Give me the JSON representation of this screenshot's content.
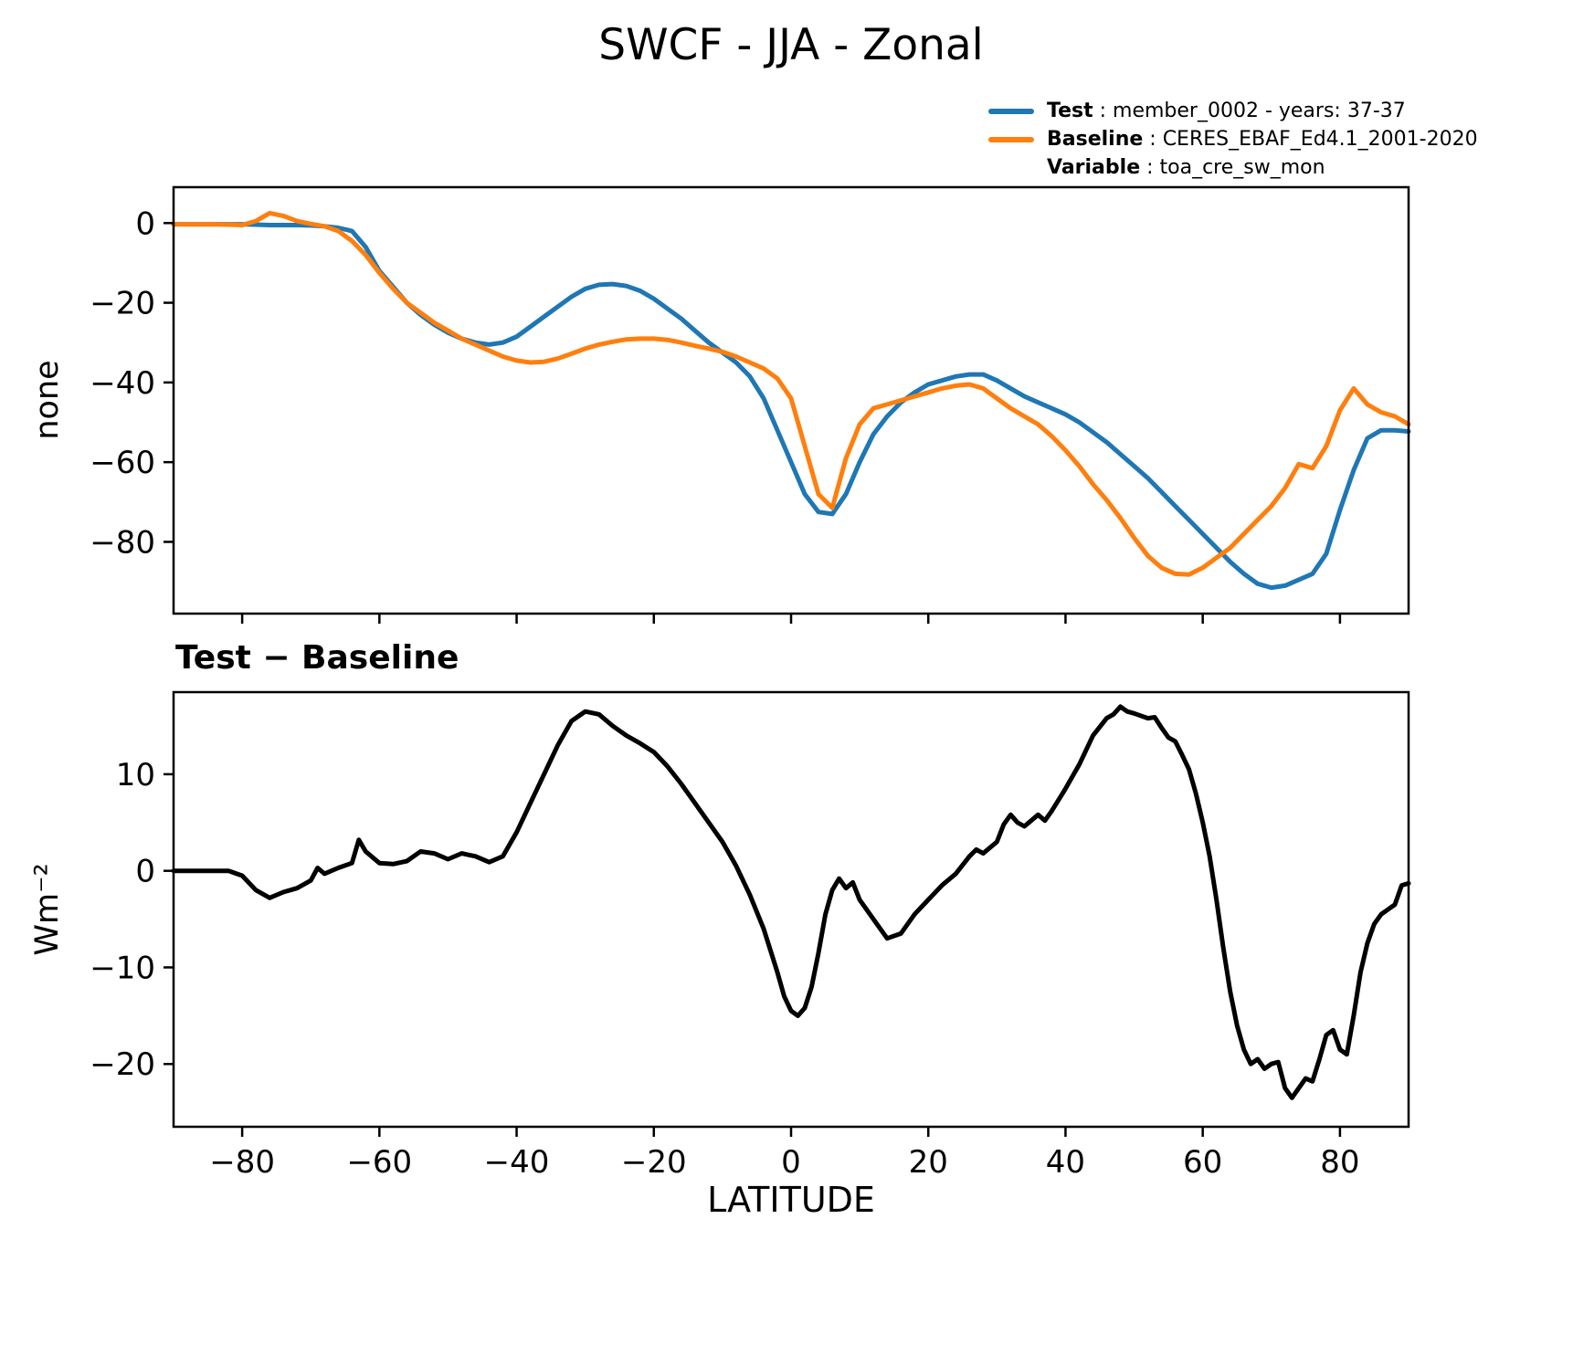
{
  "title": "SWCF - JJA - Zonal",
  "legend": {
    "entries": [
      {
        "swatch": "test",
        "key": "Test",
        "text": " : member_0002 - years: 37-37"
      },
      {
        "swatch": "baseline",
        "key": "Baseline",
        "text": " : CERES_EBAF_Ed4.1_2001-2020"
      },
      {
        "swatch": "none",
        "key": "Variable",
        "text": " : toa_cre_sw_mon"
      }
    ]
  },
  "chart_data": [
    {
      "type": "line",
      "title": "SWCF - JJA - Zonal",
      "xlabel": "",
      "ylabel": "none",
      "xlim": [
        -90,
        90
      ],
      "ylim": [
        -98,
        9
      ],
      "x_ticks": [
        -80,
        -60,
        -40,
        -20,
        0,
        20,
        40,
        60,
        80
      ],
      "y_ticks": [
        0,
        -20,
        -40,
        -60,
        -80
      ],
      "grid": false,
      "legend_position": "upper right outside",
      "series": [
        {
          "name": "Test : member_0002 - years: 37-37",
          "color": "#1f77b4",
          "x": [
            -90,
            -88,
            -86,
            -84,
            -82,
            -80,
            -78,
            -76,
            -74,
            -72,
            -70,
            -68,
            -66,
            -64,
            -62,
            -60,
            -58,
            -56,
            -54,
            -52,
            -50,
            -48,
            -46,
            -44,
            -42,
            -40,
            -38,
            -36,
            -34,
            -32,
            -30,
            -28,
            -26,
            -24,
            -22,
            -20,
            -18,
            -16,
            -14,
            -12,
            -10,
            -8,
            -6,
            -4,
            -2,
            0,
            2,
            4,
            6,
            8,
            10,
            12,
            14,
            16,
            18,
            20,
            22,
            24,
            26,
            28,
            30,
            32,
            34,
            36,
            38,
            40,
            42,
            44,
            46,
            48,
            50,
            52,
            54,
            56,
            58,
            60,
            62,
            64,
            66,
            68,
            70,
            72,
            74,
            76,
            78,
            80,
            82,
            84,
            86,
            88,
            90
          ],
          "y": [
            -0.3,
            -0.3,
            -0.3,
            -0.3,
            -0.3,
            -0.3,
            -0.4,
            -0.5,
            -0.5,
            -0.5,
            -0.6,
            -0.8,
            -1.2,
            -2,
            -6,
            -12,
            -16,
            -20,
            -23,
            -25.5,
            -27.5,
            -29,
            -30,
            -30.5,
            -30,
            -28.5,
            -26,
            -23.5,
            -21,
            -18.5,
            -16.5,
            -15.5,
            -15.3,
            -15.8,
            -17,
            -19,
            -21.5,
            -24,
            -27,
            -30,
            -32.5,
            -35,
            -38.5,
            -44,
            -52,
            -60,
            -68,
            -72.5,
            -73,
            -68,
            -60,
            -53,
            -48.5,
            -45,
            -42.5,
            -40.5,
            -39.5,
            -38.5,
            -38,
            -38,
            -39.5,
            -41.5,
            -43.5,
            -45,
            -46.5,
            -48,
            -50,
            -52.5,
            -55,
            -58,
            -61,
            -64,
            -67.5,
            -71,
            -74.5,
            -78,
            -81.5,
            -85,
            -88,
            -90.5,
            -91.5,
            -91,
            -89.5,
            -88,
            -83,
            -72,
            -62,
            -54,
            -52,
            -52,
            -52.3
          ]
        },
        {
          "name": "Baseline : CERES_EBAF_Ed4.1_2001-2020 — Variable : toa_cre_sw_mon",
          "color": "#ff7f0e",
          "x": [
            -90,
            -88,
            -86,
            -84,
            -82,
            -80,
            -78,
            -76,
            -74,
            -72,
            -70,
            -68,
            -66,
            -64,
            -62,
            -60,
            -58,
            -56,
            -54,
            -52,
            -50,
            -48,
            -46,
            -44,
            -42,
            -40,
            -38,
            -36,
            -34,
            -32,
            -30,
            -28,
            -26,
            -24,
            -22,
            -20,
            -18,
            -16,
            -14,
            -12,
            -10,
            -8,
            -6,
            -4,
            -2,
            0,
            2,
            4,
            6,
            8,
            10,
            12,
            14,
            16,
            18,
            20,
            22,
            24,
            26,
            28,
            30,
            32,
            34,
            36,
            38,
            40,
            42,
            44,
            46,
            48,
            50,
            52,
            54,
            56,
            58,
            60,
            62,
            64,
            66,
            68,
            70,
            72,
            74,
            76,
            78,
            80,
            82,
            84,
            86,
            88,
            90
          ],
          "y": [
            -0.3,
            -0.3,
            -0.3,
            -0.3,
            -0.4,
            -0.5,
            0.5,
            2.5,
            1.8,
            0.5,
            -0.2,
            -0.8,
            -2,
            -4.5,
            -8,
            -12.5,
            -16.5,
            -20,
            -22.5,
            -25,
            -27,
            -29,
            -30.5,
            -32,
            -33.5,
            -34.5,
            -35,
            -34.8,
            -34,
            -32.8,
            -31.5,
            -30.5,
            -29.8,
            -29.2,
            -29,
            -29,
            -29.3,
            -30,
            -30.8,
            -31.5,
            -32.3,
            -33.5,
            -35,
            -36.5,
            -39,
            -44,
            -56,
            -68,
            -71.5,
            -59,
            -50.5,
            -46.5,
            -45.5,
            -44.5,
            -43.5,
            -42.5,
            -41.5,
            -40.8,
            -40.5,
            -41.5,
            -44,
            -46.5,
            -48.5,
            -50.5,
            -53.5,
            -57,
            -61,
            -65.5,
            -69.5,
            -74,
            -79,
            -83.5,
            -86.5,
            -88,
            -88.2,
            -86.5,
            -84,
            -81.5,
            -78,
            -74.5,
            -71,
            -66.5,
            -60.5,
            -61.5,
            -56,
            -47,
            -41.5,
            -45.5,
            -47.5,
            -48.5,
            -50.5
          ]
        }
      ]
    },
    {
      "type": "line",
      "title": "Test − Baseline",
      "xlabel": "LATITUDE",
      "ylabel": "Wm⁻²",
      "xlim": [
        -90,
        90
      ],
      "ylim": [
        -26.5,
        18.5
      ],
      "x_ticks": [
        -80,
        -60,
        -40,
        -20,
        0,
        20,
        40,
        60,
        80
      ],
      "y_ticks": [
        10,
        0,
        -10,
        -20
      ],
      "grid": false,
      "series": [
        {
          "name": "Test − Baseline",
          "color": "#000000",
          "x": [
            -90,
            -88,
            -86,
            -84,
            -82,
            -80,
            -78,
            -76,
            -74,
            -72,
            -70,
            -69,
            -68,
            -66,
            -64,
            -63,
            -62,
            -60,
            -58,
            -56,
            -54,
            -52,
            -50,
            -48,
            -46,
            -44,
            -42,
            -40,
            -38,
            -36,
            -34,
            -32,
            -30,
            -28,
            -26,
            -24,
            -22,
            -20,
            -18,
            -16,
            -14,
            -12,
            -10,
            -8,
            -6,
            -4,
            -2,
            -1,
            0,
            1,
            2,
            3,
            4,
            5,
            6,
            7,
            8,
            9,
            10,
            12,
            14,
            16,
            18,
            20,
            22,
            24,
            26,
            27,
            28,
            30,
            31,
            32,
            33,
            34,
            35,
            36,
            37,
            38,
            40,
            42,
            44,
            46,
            47,
            48,
            49,
            50,
            52,
            53,
            54,
            55,
            56,
            57,
            58,
            59,
            60,
            61,
            62,
            63,
            64,
            65,
            66,
            67,
            68,
            69,
            70,
            71,
            72,
            73,
            74,
            75,
            76,
            77,
            78,
            79,
            80,
            81,
            82,
            83,
            84,
            85,
            86,
            87,
            88,
            89,
            90
          ],
          "y": [
            0,
            0,
            0,
            0,
            0,
            -0.5,
            -2,
            -2.8,
            -2.2,
            -1.8,
            -1,
            0.3,
            -0.3,
            0.3,
            0.8,
            3.2,
            2,
            0.8,
            0.7,
            1.0,
            2.0,
            1.8,
            1.2,
            1.8,
            1.5,
            0.9,
            1.5,
            4,
            7,
            10,
            13,
            15.5,
            16.5,
            16.2,
            15,
            14,
            13.2,
            12.3,
            10.8,
            9,
            7,
            5,
            3,
            0.5,
            -2.5,
            -6,
            -10.5,
            -13,
            -14.5,
            -15,
            -14.2,
            -12,
            -8.5,
            -4.5,
            -2,
            -0.8,
            -1.8,
            -1.2,
            -3,
            -5,
            -7,
            -6.5,
            -4.5,
            -3,
            -1.5,
            -0.3,
            1.5,
            2.2,
            1.8,
            3,
            4.8,
            5.8,
            5,
            4.6,
            5.2,
            5.8,
            5.2,
            6.2,
            8.5,
            11,
            14,
            15.8,
            16.2,
            17,
            16.5,
            16.3,
            15.8,
            15.9,
            14.8,
            13.8,
            13.4,
            12,
            10.5,
            8,
            5,
            1.5,
            -3,
            -8,
            -12.5,
            -16,
            -18.5,
            -20,
            -19.5,
            -20.5,
            -20,
            -19.8,
            -22.5,
            -23.5,
            -22.5,
            -21.5,
            -21.8,
            -19.5,
            -17,
            -16.5,
            -18.5,
            -19,
            -15,
            -10.5,
            -7.5,
            -5.5,
            -4.5,
            -4,
            -3.5,
            -1.5,
            -1.3
          ]
        }
      ]
    }
  ]
}
